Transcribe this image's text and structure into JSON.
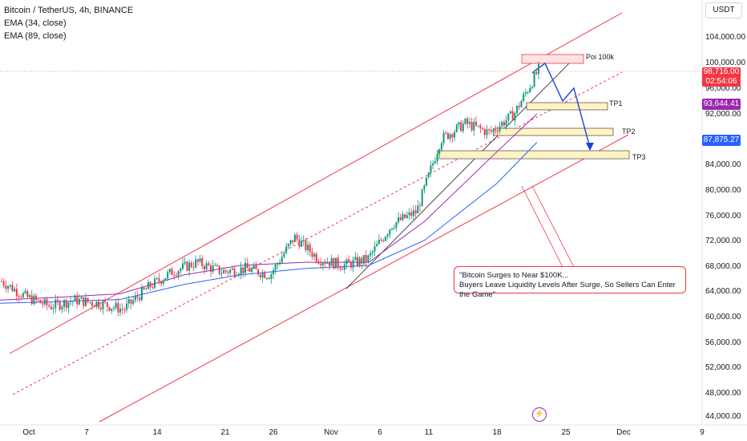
{
  "legend": {
    "symbol": "Bitcoin / TetherUS, 4h, BINANCE",
    "ema1": "EMA (34, close)",
    "ema2": "EMA (89, close)"
  },
  "currency": "USDT",
  "y_ticks": [
    "104,000.00",
    "100,000.00",
    "96,000.00",
    "92,000.00",
    "84,000.00",
    "80,000.00",
    "76,000.00",
    "72,000.00",
    "68,000.00",
    "64,000.00",
    "60,000.00",
    "56,000.00",
    "52,000.00",
    "48,000.00",
    "44,000.00"
  ],
  "x_ticks": [
    "Oct",
    "7",
    "14",
    "21",
    "26",
    "Nov",
    "6",
    "11",
    "18",
    "25",
    "Dec",
    "9"
  ],
  "price_tags": {
    "last_price": "98,716.00",
    "countdown": "02:54:06",
    "ema34": "93,644.41",
    "ema89": "87,875.27"
  },
  "zones": {
    "poi": "Poi 100k",
    "tp1": "TP1",
    "tp2": "TP2",
    "tp3": "TP3"
  },
  "annotation": {
    "line1": "\"Bitcoin Surges to Near $100K...",
    "line2": "Buyers Leave Liquidity Levels After Surge, So Sellers Can Enter the Game\""
  },
  "colors": {
    "up": "#089981",
    "down": "#f23645",
    "ema34": "#9c27b0",
    "ema89": "#2962ff",
    "channel": "#f23645",
    "projection": "#1e3fd8",
    "zone_fill": "#fff3c4",
    "poi_fill": "#fde2e2"
  },
  "chart_data": {
    "type": "candlestick",
    "title": "Bitcoin / TetherUS, 4h, BINANCE",
    "ylim": [
      43000,
      107000
    ],
    "x_dates": [
      "Oct",
      "7",
      "14",
      "21",
      "26",
      "Nov",
      "6",
      "11",
      "18",
      "25",
      "Dec",
      "9"
    ],
    "series": [
      {
        "name": "EMA (34, close)",
        "values": [
          62500,
          63000,
          63500,
          66500,
          68000,
          68500,
          68500,
          75000,
          86000,
          92000
        ]
      },
      {
        "name": "EMA (89, close)",
        "values": [
          62000,
          62300,
          62600,
          65000,
          66500,
          67500,
          68000,
          72000,
          81000,
          87500
        ]
      }
    ],
    "close_path": [
      65500,
      63000,
      61500,
      62500,
      62000,
      61000,
      64500,
      67000,
      68500,
      67000,
      67500,
      66500,
      72500,
      69000,
      68000,
      69000,
      74500,
      76500,
      88000,
      90500,
      89000,
      92000,
      99000
    ],
    "last_price": 98716,
    "ema34_last": 93644.41,
    "ema89_last": 87875.27,
    "levels": {
      "Poi 100k": 100000,
      "TP1": 93000,
      "TP2": 89700,
      "TP3": 86000
    }
  }
}
